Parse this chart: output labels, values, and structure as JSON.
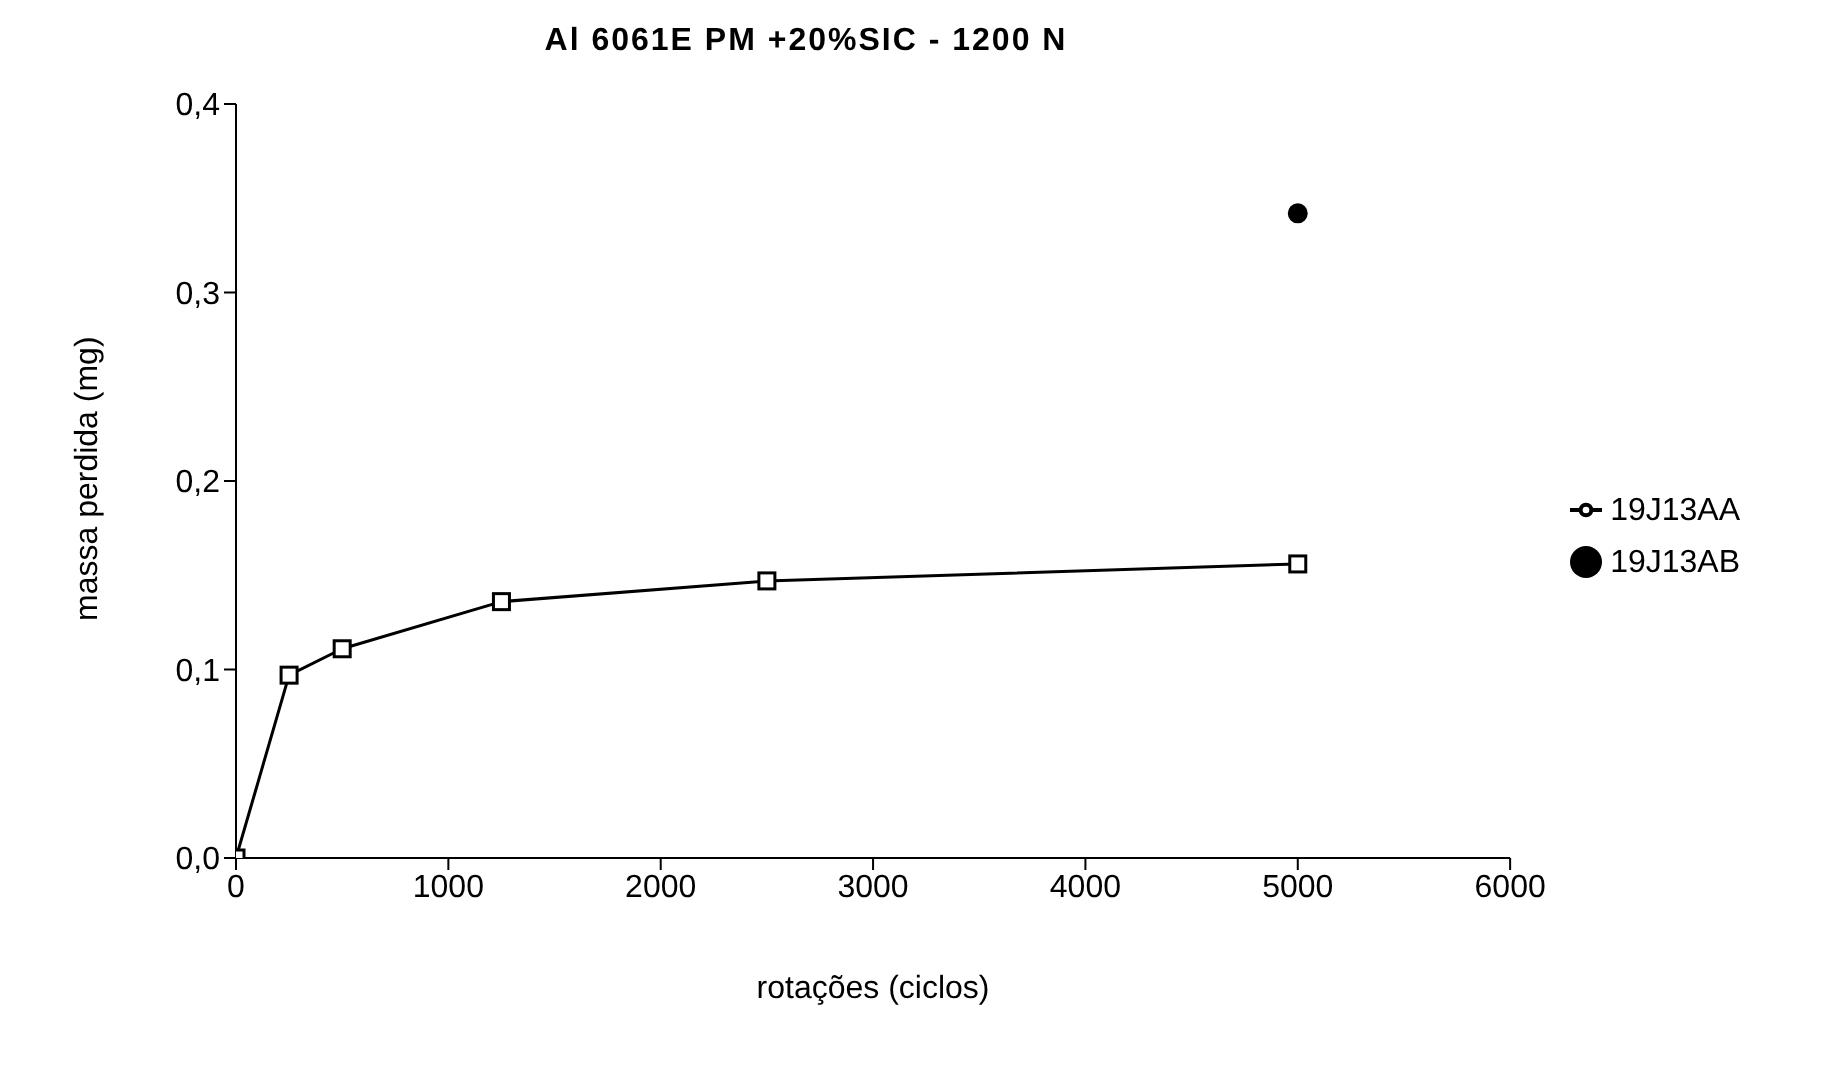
{
  "chart_data": {
    "type": "line",
    "title": "Al 6061E PM +20%SIC - 1200 N",
    "xlabel": "rotações (ciclos)",
    "ylabel": "massa perdida (mg)",
    "xlim": [
      0,
      6000
    ],
    "xticks": [
      0,
      1000,
      2000,
      3000,
      4000,
      5000,
      6000
    ],
    "ylim": [
      0,
      0.4
    ],
    "yticks": [
      {
        "value": 0,
        "label": "0,0"
      },
      {
        "value": 0.1,
        "label": "0,1"
      },
      {
        "value": 0.2,
        "label": "0,2"
      },
      {
        "value": 0.3,
        "label": "0,3"
      },
      {
        "value": 0.4,
        "label": "0,4"
      }
    ],
    "grid": false,
    "legend": "right",
    "series": [
      {
        "name": "19J13AA",
        "marker": "square",
        "color": "#000000",
        "x": [
          0,
          250,
          500,
          1250,
          2500,
          5000
        ],
        "values": [
          0,
          0.097,
          0.111,
          0.136,
          0.147,
          0.156
        ]
      },
      {
        "name": "19J13AB",
        "type": "scatter",
        "marker": "circle",
        "color": "#000000",
        "x": [
          5000
        ],
        "values": [
          0.342
        ]
      }
    ]
  }
}
